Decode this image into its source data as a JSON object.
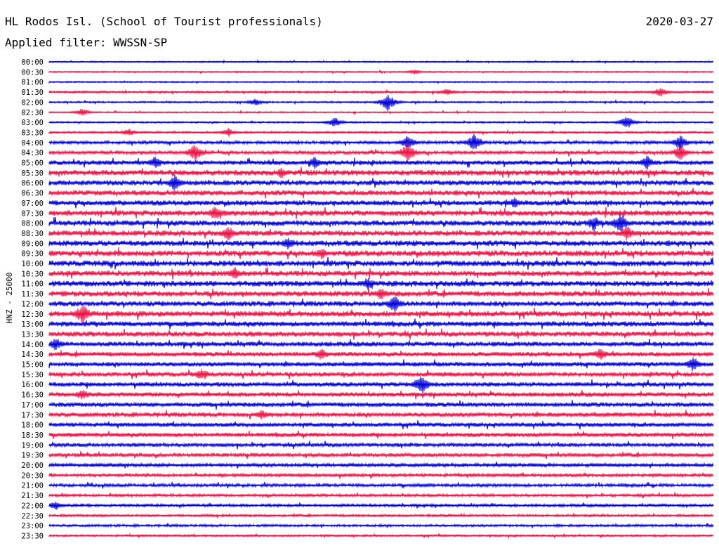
{
  "header": {
    "station": "HL Rodos Isl. (School of Tourist professionals)",
    "date": "2020-03-27",
    "filter": "Applied filter: WWSSN-SP"
  },
  "chart_data": {
    "type": "line",
    "ylabel": "HNZ - 25000",
    "colors": [
      "#0000dd",
      "#ee1144"
    ],
    "trace_hours": [
      "00:00",
      "00:30",
      "01:00",
      "01:30",
      "02:00",
      "02:30",
      "03:00",
      "03:30",
      "04:00",
      "04:30",
      "05:00",
      "05:30",
      "06:00",
      "06:30",
      "07:00",
      "07:30",
      "08:00",
      "08:30",
      "09:00",
      "09:30",
      "10:00",
      "10:30",
      "11:00",
      "11:30",
      "12:00",
      "12:30",
      "13:00",
      "13:30",
      "14:00",
      "14:30",
      "15:00",
      "15:30",
      "16:00",
      "16:30",
      "17:00",
      "17:30",
      "18:00",
      "18:30",
      "19:00",
      "19:30",
      "20:00",
      "20:30",
      "21:00",
      "21:30",
      "22:00",
      "22:30",
      "23:00",
      "23:30"
    ],
    "noise_level": [
      0.8,
      0.8,
      0.8,
      1.2,
      1.0,
      0.8,
      1.0,
      1.2,
      1.8,
      2.0,
      2.6,
      3.2,
      3.0,
      3.0,
      3.0,
      3.2,
      3.2,
      3.2,
      3.2,
      3.4,
      3.4,
      3.2,
      3.2,
      3.2,
      3.0,
      3.2,
      3.0,
      3.0,
      2.8,
      2.6,
      2.6,
      2.6,
      2.6,
      2.6,
      2.6,
      2.6,
      2.4,
      2.4,
      2.2,
      2.2,
      2.0,
      1.8,
      1.8,
      1.6,
      1.6,
      1.4,
      1.4,
      1.2
    ],
    "events": [
      {
        "trace": 1,
        "pos": 0.55,
        "amp": 4
      },
      {
        "trace": 3,
        "pos": 0.6,
        "amp": 6
      },
      {
        "trace": 3,
        "pos": 0.92,
        "amp": 8
      },
      {
        "trace": 4,
        "pos": 0.51,
        "amp": 14
      },
      {
        "trace": 4,
        "pos": 0.31,
        "amp": 6
      },
      {
        "trace": 5,
        "pos": 0.05,
        "amp": 6
      },
      {
        "trace": 6,
        "pos": 0.43,
        "amp": 8
      },
      {
        "trace": 6,
        "pos": 0.87,
        "amp": 10
      },
      {
        "trace": 7,
        "pos": 0.12,
        "amp": 6
      },
      {
        "trace": 7,
        "pos": 0.27,
        "amp": 7
      },
      {
        "trace": 8,
        "pos": 0.54,
        "amp": 12
      },
      {
        "trace": 8,
        "pos": 0.64,
        "amp": 16
      },
      {
        "trace": 8,
        "pos": 0.95,
        "amp": 12
      },
      {
        "trace": 9,
        "pos": 0.22,
        "amp": 14
      },
      {
        "trace": 9,
        "pos": 0.54,
        "amp": 16
      },
      {
        "trace": 9,
        "pos": 0.95,
        "amp": 12
      },
      {
        "trace": 10,
        "pos": 0.16,
        "amp": 10
      },
      {
        "trace": 10,
        "pos": 0.4,
        "amp": 10
      },
      {
        "trace": 10,
        "pos": 0.9,
        "amp": 12
      },
      {
        "trace": 11,
        "pos": 0.35,
        "amp": 9
      },
      {
        "trace": 12,
        "pos": 0.19,
        "amp": 14
      },
      {
        "trace": 14,
        "pos": 0.7,
        "amp": 9
      },
      {
        "trace": 15,
        "pos": 0.25,
        "amp": 12
      },
      {
        "trace": 16,
        "pos": 0.82,
        "amp": 12
      },
      {
        "trace": 16,
        "pos": 0.86,
        "amp": 16
      },
      {
        "trace": 17,
        "pos": 0.27,
        "amp": 12
      },
      {
        "trace": 17,
        "pos": 0.87,
        "amp": 12
      },
      {
        "trace": 18,
        "pos": 0.36,
        "amp": 10
      },
      {
        "trace": 19,
        "pos": 0.41,
        "amp": 9
      },
      {
        "trace": 21,
        "pos": 0.28,
        "amp": 10
      },
      {
        "trace": 22,
        "pos": 0.48,
        "amp": 10
      },
      {
        "trace": 23,
        "pos": 0.5,
        "amp": 10
      },
      {
        "trace": 24,
        "pos": 0.52,
        "amp": 14
      },
      {
        "trace": 25,
        "pos": 0.05,
        "amp": 16
      },
      {
        "trace": 28,
        "pos": 0.01,
        "amp": 10
      },
      {
        "trace": 29,
        "pos": 0.41,
        "amp": 10
      },
      {
        "trace": 29,
        "pos": 0.83,
        "amp": 10
      },
      {
        "trace": 30,
        "pos": 0.97,
        "amp": 12
      },
      {
        "trace": 31,
        "pos": 0.23,
        "amp": 10
      },
      {
        "trace": 32,
        "pos": 0.56,
        "amp": 16
      },
      {
        "trace": 33,
        "pos": 0.05,
        "amp": 9
      },
      {
        "trace": 35,
        "pos": 0.32,
        "amp": 8
      },
      {
        "trace": 44,
        "pos": 0.01,
        "amp": 7
      }
    ]
  }
}
